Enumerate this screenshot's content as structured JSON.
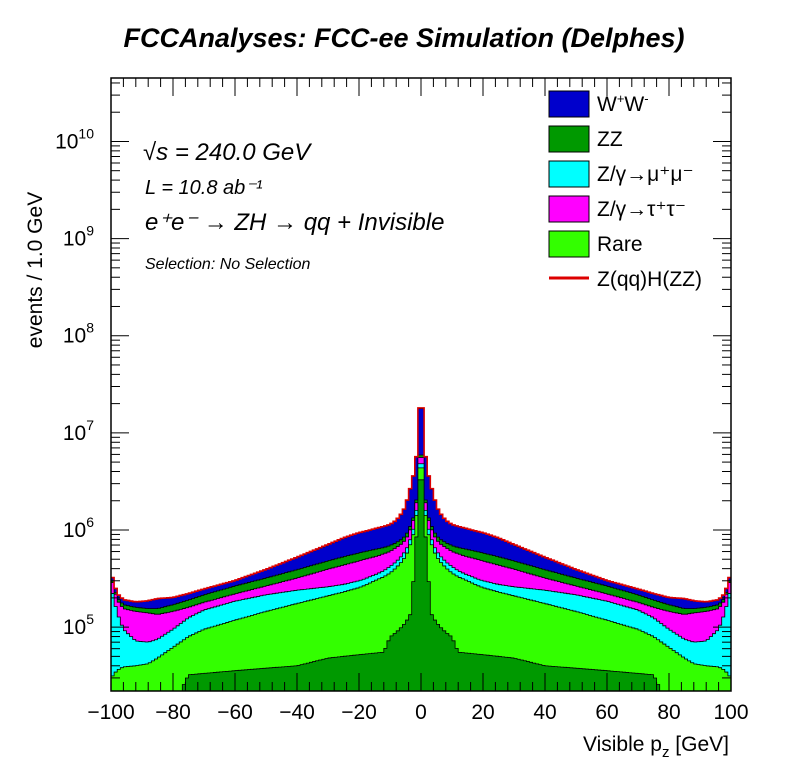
{
  "title": "FCCAnalyses: FCC-ee Simulation (Delphes)",
  "annotations": {
    "sqrt_s": "√s = 240.0 GeV",
    "lumi": "L = 10.8 ab⁻¹",
    "process": "e⁺e⁻ → ZH → qq + Invisible",
    "selection": "Selection: No Selection"
  },
  "colors": {
    "ww": "#0000cc",
    "zz": "#009900",
    "zmumu": "#00ffff",
    "ztautau": "#ff00ff",
    "rare": "#33ff00",
    "signal": "#dd0000"
  },
  "chart_data": {
    "type": "area",
    "stacked": true,
    "log_y": true,
    "title": "FCCAnalyses: FCC-ee Simulation (Delphes)",
    "xlabel": "Visible p_z [GeV]",
    "ylabel": "events / 1.0 GeV",
    "xlim": [
      -100,
      100
    ],
    "ylim": [
      22000,
      45000000000
    ],
    "x_ticks": [
      "−100",
      "−80",
      "−60",
      "−40",
      "−20",
      "0",
      "20",
      "40",
      "60",
      "80",
      "100"
    ],
    "y_ticks": [
      {
        "base": "10",
        "exp": "5"
      },
      {
        "base": "10",
        "exp": "6"
      },
      {
        "base": "10",
        "exp": "7"
      },
      {
        "base": "10",
        "exp": "8"
      },
      {
        "base": "10",
        "exp": "9"
      },
      {
        "base": "10",
        "exp": "10"
      }
    ],
    "legend_position": "top-right",
    "x": [
      0,
      1,
      2,
      3,
      4,
      5,
      6,
      8,
      10,
      12,
      14,
      16,
      18,
      20,
      25,
      30,
      40,
      50,
      60,
      70,
      75,
      80,
      85,
      88,
      92,
      96,
      98,
      99,
      100
    ],
    "series": [
      {
        "name": "Rare",
        "values": [
          9500000,
          2000000,
          1000000,
          800000,
          620000,
          540000,
          480000,
          410000,
          360000,
          330000,
          310000,
          290000,
          270000,
          255000,
          230000,
          210000,
          175000,
          145000,
          118000,
          95000,
          80000,
          62000,
          48000,
          42000,
          40000,
          39000,
          36000,
          33000,
          30000
        ]
      },
      {
        "name": "Z/γ→μ⁺μ⁻",
        "values": [
          10500000,
          2200000,
          1150000,
          900000,
          700000,
          615000,
          550000,
          470000,
          420000,
          380000,
          355000,
          335000,
          315000,
          300000,
          275000,
          260000,
          240000,
          215000,
          185000,
          150000,
          125000,
          95000,
          75000,
          70000,
          72000,
          95000,
          140000,
          190000,
          260000
        ]
      },
      {
        "name": "Z/γ→τ⁺τ⁻",
        "values": [
          12000000,
          2600000,
          1400000,
          1120000,
          900000,
          800000,
          730000,
          660000,
          600000,
          570000,
          540000,
          520000,
          500000,
          480000,
          435000,
          395000,
          320000,
          265000,
          220000,
          180000,
          160000,
          145000,
          135000,
          140000,
          145000,
          155000,
          190000,
          250000,
          330000
        ]
      },
      {
        "name": "ZZ",
        "values": [
          12500000,
          2800000,
          1480000,
          1200000,
          980000,
          880000,
          810000,
          740000,
          690000,
          660000,
          640000,
          620000,
          600000,
          580000,
          530000,
          480000,
          390000,
          320000,
          265000,
          215000,
          190000,
          170000,
          155000,
          155000,
          160000,
          170000,
          200000,
          260000,
          340000
        ]
      },
      {
        "name": "W⁺W⁻",
        "values": [
          42000000,
          7500000,
          4200000,
          3000000,
          2300000,
          1750000,
          1500000,
          1250000,
          1130000,
          1080000,
          1040000,
          1000000,
          960000,
          930000,
          820000,
          700000,
          520000,
          390000,
          300000,
          245000,
          220000,
          200000,
          195000,
          185000,
          180000,
          190000,
          220000,
          280000,
          370000
        ]
      }
    ],
    "signal": {
      "name": "Z(qq)H(ZZ)",
      "values": [
        43000000,
        7600000,
        4250000,
        3050000,
        2330000,
        1770000,
        1520000,
        1260000,
        1140000,
        1090000,
        1050000,
        1010000,
        970000,
        940000,
        830000,
        710000,
        525000,
        393000,
        302000,
        247000,
        222000,
        202000,
        197000,
        187000,
        182000,
        192000,
        222000,
        282000,
        372000
      ]
    }
  },
  "legend": [
    {
      "key": "ww",
      "label_html": [
        "W",
        "+",
        "W",
        "-"
      ]
    },
    {
      "key": "zz",
      "label": "ZZ"
    },
    {
      "key": "zmumu",
      "label": "Z/γ→μ⁺μ⁻"
    },
    {
      "key": "ztautau",
      "label": "Z/γ→τ⁺τ⁻"
    },
    {
      "key": "rare",
      "label": "Rare"
    },
    {
      "key": "signal",
      "label": "Z(qq)H(ZZ)"
    }
  ]
}
